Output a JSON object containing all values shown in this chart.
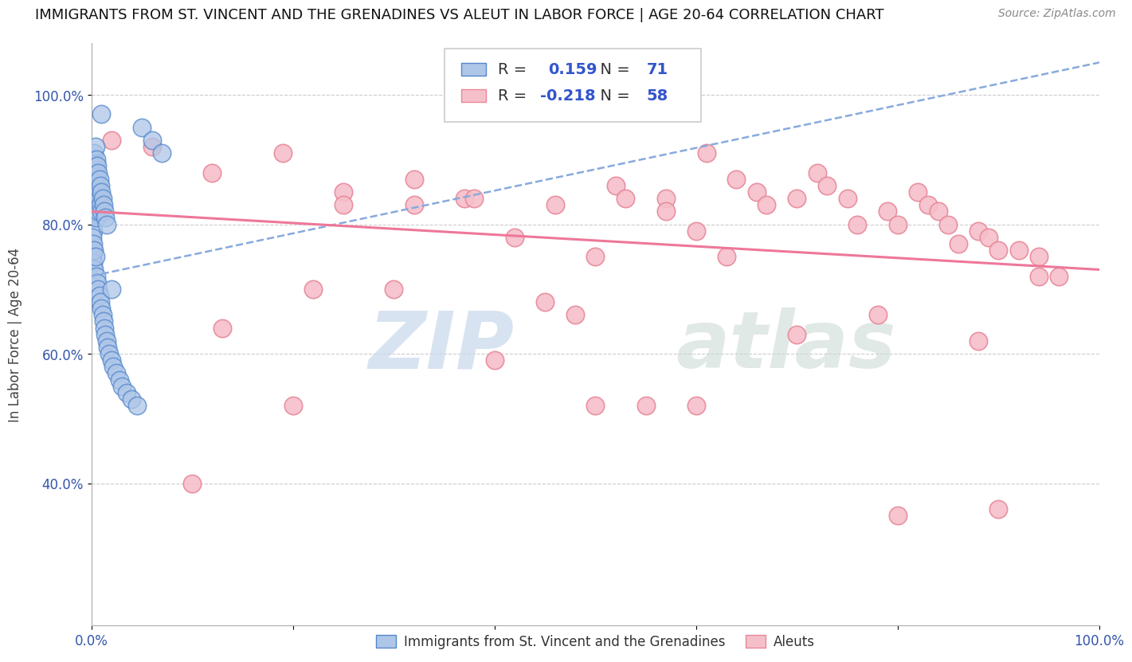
{
  "title": "IMMIGRANTS FROM ST. VINCENT AND THE GRENADINES VS ALEUT IN LABOR FORCE | AGE 20-64 CORRELATION CHART",
  "source": "Source: ZipAtlas.com",
  "ylabel": "In Labor Force | Age 20-64",
  "xlim": [
    0.0,
    1.0
  ],
  "ylim": [
    0.18,
    1.08
  ],
  "xtick_vals": [
    0.0,
    0.2,
    0.4,
    0.6,
    0.8,
    1.0
  ],
  "xtick_labels": [
    "0.0%",
    "",
    "",
    "",
    "",
    "100.0%"
  ],
  "ytick_vals": [
    0.4,
    0.6,
    0.8,
    1.0
  ],
  "ytick_labels": [
    "40.0%",
    "60.0%",
    "80.0%",
    "100.0%"
  ],
  "blue_R": 0.159,
  "blue_N": 71,
  "pink_R": -0.218,
  "pink_N": 58,
  "blue_color": "#AEC6E8",
  "pink_color": "#F5BFCA",
  "blue_edge": "#5588CC",
  "pink_edge": "#E88899",
  "trend_blue_color": "#88AADD",
  "trend_pink_color": "#EE7799",
  "legend_label_blue": "Immigrants from St. Vincent and the Grenadines",
  "legend_label_pink": "Aleuts",
  "blue_trend_x0": 0.0,
  "blue_trend_y0": 0.72,
  "blue_trend_x1": 1.0,
  "blue_trend_y1": 1.05,
  "pink_trend_x0": 0.0,
  "pink_trend_y0": 0.82,
  "pink_trend_x1": 1.0,
  "pink_trend_y1": 0.73,
  "pink_x": [
    0.02,
    0.06,
    0.12,
    0.19,
    0.25,
    0.25,
    0.32,
    0.32,
    0.37,
    0.38,
    0.42,
    0.46,
    0.5,
    0.52,
    0.53,
    0.57,
    0.57,
    0.6,
    0.61,
    0.64,
    0.66,
    0.67,
    0.7,
    0.72,
    0.73,
    0.75,
    0.76,
    0.79,
    0.8,
    0.82,
    0.83,
    0.84,
    0.85,
    0.86,
    0.88,
    0.89,
    0.9,
    0.92,
    0.94,
    0.96,
    0.13,
    0.22,
    0.3,
    0.45,
    0.48,
    0.5,
    0.63,
    0.7,
    0.78,
    0.88,
    0.94,
    0.1,
    0.2,
    0.4,
    0.55,
    0.6,
    0.8,
    0.9
  ],
  "pink_y": [
    0.93,
    0.92,
    0.88,
    0.91,
    0.85,
    0.83,
    0.87,
    0.83,
    0.84,
    0.84,
    0.78,
    0.83,
    0.75,
    0.86,
    0.84,
    0.84,
    0.82,
    0.79,
    0.91,
    0.87,
    0.85,
    0.83,
    0.84,
    0.88,
    0.86,
    0.84,
    0.8,
    0.82,
    0.8,
    0.85,
    0.83,
    0.82,
    0.8,
    0.77,
    0.79,
    0.78,
    0.76,
    0.76,
    0.75,
    0.72,
    0.64,
    0.7,
    0.7,
    0.68,
    0.66,
    0.52,
    0.75,
    0.63,
    0.66,
    0.62,
    0.72,
    0.4,
    0.52,
    0.59,
    0.52,
    0.52,
    0.35,
    0.36
  ],
  "blue_x_tight": [
    0.001,
    0.001,
    0.001,
    0.001,
    0.002,
    0.002,
    0.002,
    0.002,
    0.002,
    0.003,
    0.003,
    0.003,
    0.003,
    0.004,
    0.004,
    0.004,
    0.004,
    0.005,
    0.005,
    0.005,
    0.005,
    0.006,
    0.006,
    0.006,
    0.007,
    0.007,
    0.007,
    0.008,
    0.008,
    0.009,
    0.009,
    0.01,
    0.01,
    0.011,
    0.012,
    0.013,
    0.014,
    0.015,
    0.001,
    0.001,
    0.002,
    0.002,
    0.003,
    0.003,
    0.004,
    0.005,
    0.006,
    0.007,
    0.008,
    0.009,
    0.01,
    0.011,
    0.012,
    0.013,
    0.014,
    0.015,
    0.016,
    0.018,
    0.02,
    0.022,
    0.025,
    0.028,
    0.03,
    0.035,
    0.04,
    0.045,
    0.05,
    0.06,
    0.07,
    0.01,
    0.02
  ],
  "blue_y_tight": [
    0.9,
    0.87,
    0.84,
    0.81,
    0.88,
    0.85,
    0.82,
    0.79,
    0.76,
    0.91,
    0.88,
    0.85,
    0.82,
    0.92,
    0.89,
    0.86,
    0.83,
    0.9,
    0.87,
    0.84,
    0.81,
    0.89,
    0.86,
    0.83,
    0.88,
    0.85,
    0.82,
    0.87,
    0.84,
    0.86,
    0.83,
    0.85,
    0.82,
    0.84,
    0.83,
    0.82,
    0.81,
    0.8,
    0.78,
    0.75,
    0.77,
    0.74,
    0.76,
    0.73,
    0.75,
    0.72,
    0.71,
    0.7,
    0.69,
    0.68,
    0.67,
    0.66,
    0.65,
    0.64,
    0.63,
    0.62,
    0.61,
    0.6,
    0.59,
    0.58,
    0.57,
    0.56,
    0.55,
    0.54,
    0.53,
    0.52,
    0.95,
    0.93,
    0.91,
    0.97,
    0.7
  ]
}
